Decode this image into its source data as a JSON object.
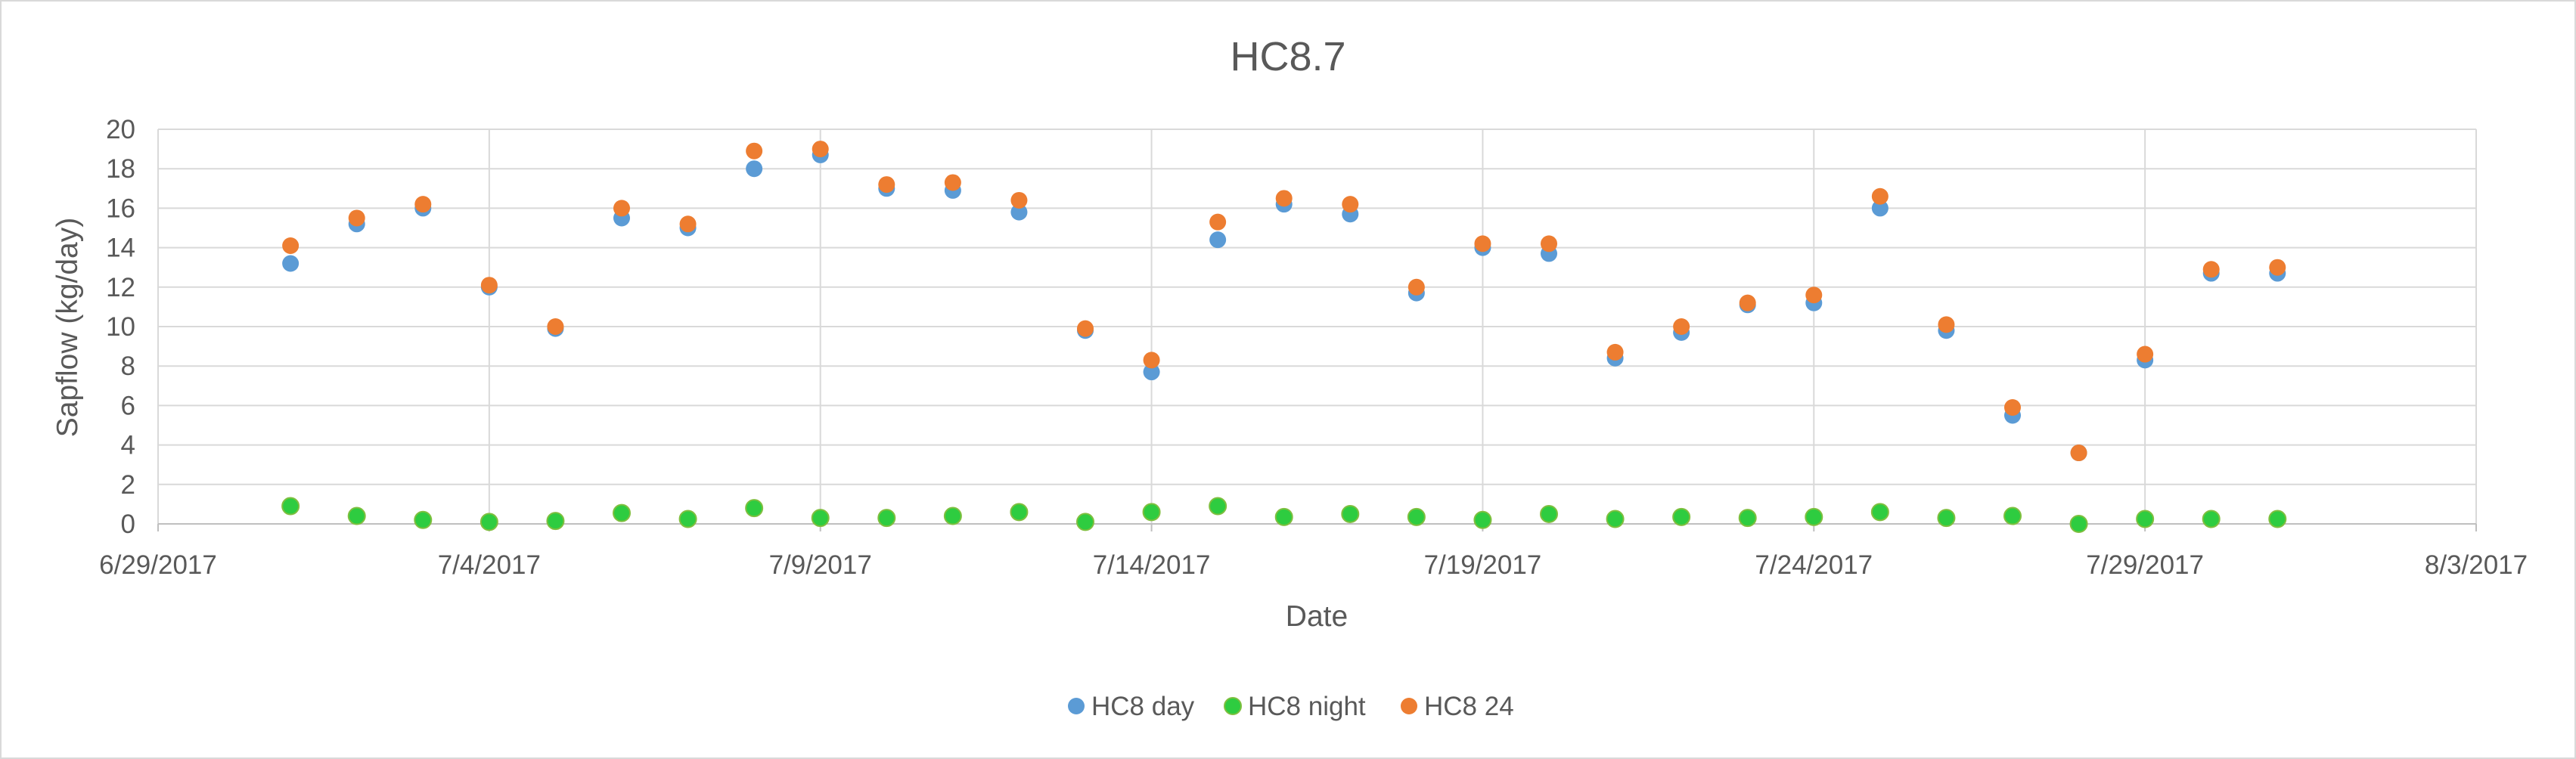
{
  "chart_data": {
    "type": "scatter",
    "title": "HC8.7",
    "xlabel": "Date",
    "ylabel": "Sapflow (kg/day)",
    "xlim": [
      "6/29/2017",
      "8/3/2017"
    ],
    "ylim": [
      0,
      20
    ],
    "x_ticks": [
      "6/29/2017",
      "7/4/2017",
      "7/9/2017",
      "7/14/2017",
      "7/19/2017",
      "7/24/2017",
      "7/29/2017",
      "8/3/2017"
    ],
    "y_ticks": [
      0,
      2,
      4,
      6,
      8,
      10,
      12,
      14,
      16,
      18,
      20
    ],
    "grid": true,
    "legend_position": "bottom",
    "x": [
      "7/1/2017",
      "7/2/2017",
      "7/3/2017",
      "7/4/2017",
      "7/5/2017",
      "7/6/2017",
      "7/7/2017",
      "7/8/2017",
      "7/9/2017",
      "7/10/2017",
      "7/11/2017",
      "7/12/2017",
      "7/13/2017",
      "7/14/2017",
      "7/15/2017",
      "7/16/2017",
      "7/17/2017",
      "7/18/2017",
      "7/19/2017",
      "7/20/2017",
      "7/21/2017",
      "7/22/2017",
      "7/23/2017",
      "7/24/2017",
      "7/25/2017",
      "7/26/2017",
      "7/27/2017",
      "7/28/2017",
      "7/29/2017",
      "7/30/2017",
      "7/31/2017"
    ],
    "series": [
      {
        "name": "HC8 day",
        "color": "#5B9BD5",
        "values": [
          13.2,
          15.2,
          16.0,
          12.0,
          9.9,
          15.5,
          15.0,
          18.0,
          18.7,
          17.0,
          16.9,
          15.8,
          9.8,
          7.7,
          14.4,
          16.2,
          15.7,
          11.7,
          14.0,
          13.7,
          8.4,
          9.7,
          11.1,
          11.2,
          16.0,
          9.8,
          5.5,
          3.6,
          8.3,
          12.7,
          12.7
        ]
      },
      {
        "name": "HC8 night",
        "color": "#2ECC40",
        "values": [
          0.9,
          0.4,
          0.2,
          0.1,
          0.15,
          0.55,
          0.25,
          0.8,
          0.3,
          0.3,
          0.4,
          0.6,
          0.1,
          0.6,
          0.9,
          0.35,
          0.5,
          0.35,
          0.2,
          0.5,
          0.25,
          0.35,
          0.3,
          0.35,
          0.6,
          0.3,
          0.4,
          0.0,
          0.25,
          0.25,
          0.25
        ]
      },
      {
        "name": "HC8 24",
        "color": "#ED7D31",
        "values": [
          14.1,
          15.5,
          16.2,
          12.1,
          10.0,
          16.0,
          15.2,
          18.9,
          19.0,
          17.2,
          17.3,
          16.4,
          9.9,
          8.3,
          15.3,
          16.5,
          16.2,
          12.0,
          14.2,
          14.2,
          8.7,
          10.0,
          11.2,
          11.6,
          16.6,
          10.1,
          5.9,
          3.6,
          8.6,
          12.9,
          13.0
        ]
      }
    ]
  }
}
